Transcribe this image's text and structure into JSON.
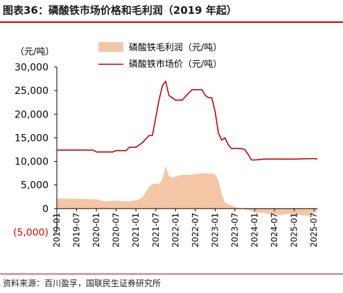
{
  "header": {
    "title": "图表36：磷酸铁市场价格和毛利润（2019 年起）"
  },
  "footer": {
    "source": "资料来源：百川盈孚，国联民生证券研究所"
  },
  "colors": {
    "line": "#c00000",
    "area": "#f4c6a5",
    "header_rule": "#c00000",
    "negative_tick": "#e00000"
  },
  "chart_data": {
    "type": "area",
    "unit_label": "（元/吨）",
    "ylim": [
      -5000,
      30000
    ],
    "yticks": [
      -5000,
      0,
      5000,
      10000,
      15000,
      20000,
      25000,
      30000
    ],
    "ytick_labels": [
      "(5,000)",
      "0",
      "5,000",
      "10,000",
      "15,000",
      "20,000",
      "25,000",
      "30,000"
    ],
    "xlim": [
      "2019-01",
      "2025-08"
    ],
    "xtick_labels": [
      "2019-01",
      "2019-07",
      "2020-01",
      "2020-07",
      "2021-01",
      "2021-07",
      "2022-01",
      "2022-07",
      "2023-01",
      "2023-07",
      "2024-01",
      "2024-07",
      "2025-01",
      "2025-07"
    ],
    "legend": {
      "position": "top-center"
    },
    "grid": false,
    "series": [
      {
        "name": "磷酸铁毛利润（元/吨）",
        "type": "area",
        "points": [
          [
            "2019-01",
            2100
          ],
          [
            "2019-06",
            2100
          ],
          [
            "2019-10",
            2000
          ],
          [
            "2020-01",
            2000
          ],
          [
            "2020-03",
            1600
          ],
          [
            "2020-04",
            1500
          ],
          [
            "2020-06",
            1700
          ],
          [
            "2020-09",
            1600
          ],
          [
            "2020-11",
            1500
          ],
          [
            "2021-01",
            1800
          ],
          [
            "2021-02",
            2000
          ],
          [
            "2021-03",
            2400
          ],
          [
            "2021-04",
            3500
          ],
          [
            "2021-05",
            4700
          ],
          [
            "2021-06",
            5100
          ],
          [
            "2021-07",
            5300
          ],
          [
            "2021-08",
            5200
          ],
          [
            "2021-09",
            6200
          ],
          [
            "2021-10",
            9000
          ],
          [
            "2021-11",
            7000
          ],
          [
            "2021-12",
            6500
          ],
          [
            "2022-01",
            6800
          ],
          [
            "2022-03",
            7200
          ],
          [
            "2022-05",
            7100
          ],
          [
            "2022-07",
            7300
          ],
          [
            "2022-09",
            7500
          ],
          [
            "2022-11",
            7400
          ],
          [
            "2022-12",
            7500
          ],
          [
            "2023-01",
            7200
          ],
          [
            "2023-02",
            6000
          ],
          [
            "2023-03",
            3000
          ],
          [
            "2023-04",
            1300
          ],
          [
            "2023-05",
            900
          ],
          [
            "2023-06",
            700
          ],
          [
            "2023-07",
            300
          ],
          [
            "2023-09",
            100
          ],
          [
            "2023-10",
            -200
          ],
          [
            "2023-12",
            -500
          ],
          [
            "2024-01",
            -800
          ],
          [
            "2024-03",
            -900
          ],
          [
            "2024-05",
            -1100
          ],
          [
            "2024-07",
            -1200
          ],
          [
            "2024-09",
            -1400
          ],
          [
            "2024-11",
            -1100
          ],
          [
            "2025-01",
            -1300
          ],
          [
            "2025-03",
            -1400
          ],
          [
            "2025-05",
            -1600
          ],
          [
            "2025-07",
            -900
          ],
          [
            "2025-08",
            -600
          ]
        ]
      },
      {
        "name": "磷酸铁市场价（元/吨）",
        "type": "line",
        "points": [
          [
            "2019-01",
            12400
          ],
          [
            "2019-12",
            12400
          ],
          [
            "2020-01",
            12000
          ],
          [
            "2020-06",
            12000
          ],
          [
            "2020-07",
            12300
          ],
          [
            "2020-10",
            12300
          ],
          [
            "2020-11",
            13000
          ],
          [
            "2021-01",
            13000
          ],
          [
            "2021-03",
            14000
          ],
          [
            "2021-05",
            15500
          ],
          [
            "2021-06",
            15500
          ],
          [
            "2021-08",
            23000
          ],
          [
            "2021-09",
            26000
          ],
          [
            "2021-10",
            27000
          ],
          [
            "2021-11",
            24000
          ],
          [
            "2022-01",
            23000
          ],
          [
            "2022-03",
            23000
          ],
          [
            "2022-05",
            24500
          ],
          [
            "2022-06",
            25200
          ],
          [
            "2022-09",
            25200
          ],
          [
            "2022-10",
            24000
          ],
          [
            "2022-11",
            23500
          ],
          [
            "2022-12",
            23500
          ],
          [
            "2023-01",
            20500
          ],
          [
            "2023-02",
            16000
          ],
          [
            "2023-03",
            14500
          ],
          [
            "2023-04",
            15000
          ],
          [
            "2023-05",
            13500
          ],
          [
            "2023-06",
            12700
          ],
          [
            "2023-07",
            12800
          ],
          [
            "2023-09",
            12700
          ],
          [
            "2023-10",
            12500
          ],
          [
            "2023-11",
            11500
          ],
          [
            "2023-12",
            10300
          ],
          [
            "2024-01",
            10300
          ],
          [
            "2024-04",
            10500
          ],
          [
            "2024-07",
            10500
          ],
          [
            "2025-01",
            10500
          ],
          [
            "2025-07",
            10600
          ],
          [
            "2025-08",
            10500
          ]
        ]
      }
    ]
  }
}
